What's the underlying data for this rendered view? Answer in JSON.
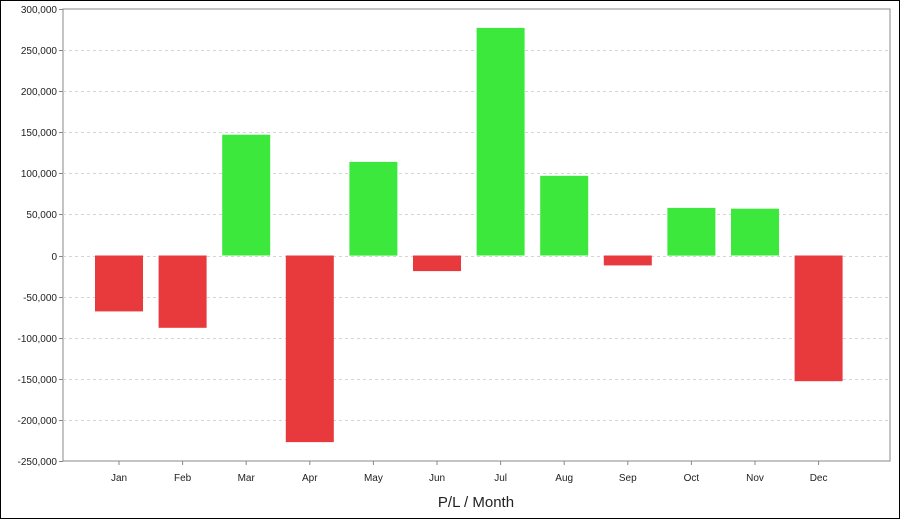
{
  "chart_data": {
    "type": "bar",
    "title": "",
    "xlabel": "P/L / Month",
    "ylabel": "",
    "categories": [
      "Jan",
      "Feb",
      "Mar",
      "Apr",
      "May",
      "Jun",
      "Jul",
      "Aug",
      "Sep",
      "Oct",
      "Nov",
      "Dec"
    ],
    "values": [
      -68000,
      -88000,
      147000,
      -227000,
      114000,
      -19000,
      277000,
      97000,
      -12000,
      58000,
      57000,
      -153000
    ],
    "ylim": [
      -250000,
      300000
    ],
    "yticks": [
      300000,
      250000,
      200000,
      150000,
      100000,
      50000,
      0,
      -50000,
      -100000,
      -150000,
      -200000,
      -250000
    ],
    "ytick_labels": [
      "300,000",
      "250,000",
      "200,000",
      "150,000",
      "100,000",
      "50,000",
      "0",
      "-50,000",
      "-100,000",
      "-150,000",
      "-200,000",
      "-250,000"
    ],
    "grid": true,
    "legend": "none",
    "colors": {
      "positive": "#3ce83c",
      "negative": "#e8393c",
      "grid": "#d4d4d4",
      "axis": "#888888"
    }
  }
}
